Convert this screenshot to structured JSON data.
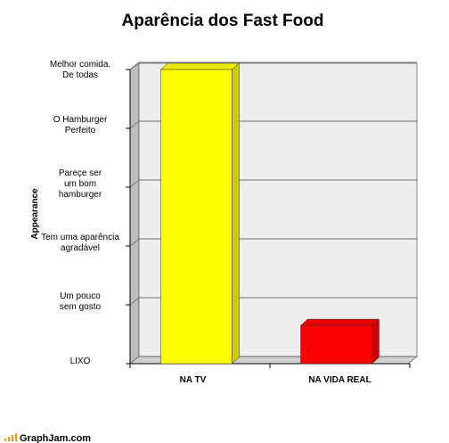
{
  "chart_data": {
    "type": "bar",
    "title": "Aparência dos Fast Food",
    "xlabel": "",
    "ylabel": "Appearance",
    "y_ticks": [
      {
        "value": 0,
        "lines": [
          "LIXO"
        ]
      },
      {
        "value": 1,
        "lines": [
          "Um pouco",
          "sem gosto"
        ]
      },
      {
        "value": 2,
        "lines": [
          "Tem uma aparência",
          "agradável"
        ]
      },
      {
        "value": 3,
        "lines": [
          "Pareçe ser",
          "um bom",
          "hamburger"
        ]
      },
      {
        "value": 4,
        "lines": [
          "O Hamburger",
          "Perfeito"
        ]
      },
      {
        "value": 5,
        "lines": [
          "Melhor comida.",
          "De todas"
        ]
      }
    ],
    "categories": [
      "NA TV",
      "NA VIDA REAL"
    ],
    "values": [
      5,
      0.65
    ],
    "colors": [
      "#ffff00",
      "#ff0000"
    ],
    "ylim": [
      0,
      5
    ],
    "grid": true,
    "legend": "none"
  },
  "footer": {
    "brand": "GraphJam.com"
  }
}
